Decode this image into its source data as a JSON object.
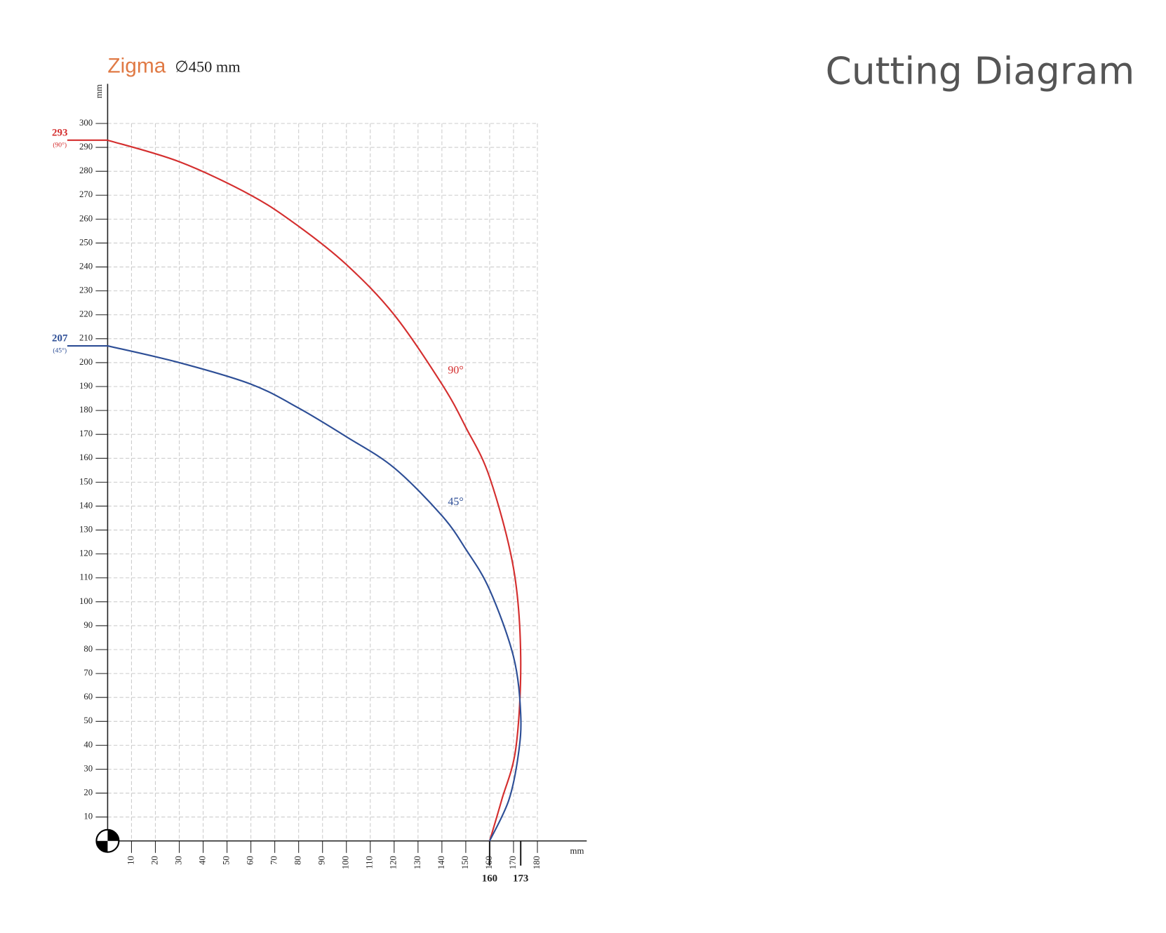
{
  "header": {
    "brand": "Zigma",
    "blade": "∅450 mm",
    "title": "Cutting Diagram"
  },
  "chart_data": {
    "type": "line",
    "x_label": "mm",
    "y_label": "mm",
    "xlim": [
      0,
      180
    ],
    "ylim": [
      0,
      300
    ],
    "xticks": [
      10,
      20,
      30,
      40,
      50,
      60,
      70,
      80,
      90,
      100,
      110,
      120,
      130,
      140,
      150,
      160,
      170,
      180
    ],
    "yticks": [
      10,
      20,
      30,
      40,
      50,
      60,
      70,
      80,
      90,
      100,
      110,
      120,
      130,
      140,
      150,
      160,
      170,
      180,
      190,
      200,
      210,
      220,
      230,
      240,
      250,
      260,
      270,
      280,
      290,
      300
    ],
    "grid": true,
    "series": [
      {
        "name": "90°",
        "color": "#d42e2e",
        "x": [
          0,
          30,
          60,
          80,
          100,
          120,
          140,
          150,
          160,
          170,
          173,
          171,
          165,
          160
        ],
        "values": [
          293,
          284,
          270,
          257,
          241,
          220,
          191,
          173,
          152,
          114,
          77,
          39,
          17,
          0
        ]
      },
      {
        "name": "45°",
        "color": "#2d4e96",
        "x": [
          0,
          30,
          60,
          80,
          100,
          120,
          140,
          150,
          160,
          170,
          173,
          172,
          168,
          160
        ],
        "values": [
          207,
          200,
          191,
          181,
          169,
          156,
          136,
          122,
          105,
          77,
          53,
          36,
          17,
          0
        ]
      }
    ],
    "y_markers": [
      {
        "value": 293,
        "note": "(90°)",
        "color": "#d42e2e"
      },
      {
        "value": 207,
        "note": "(45°)",
        "color": "#2d4e96"
      }
    ],
    "x_markers": [
      {
        "value": 160
      },
      {
        "value": 173
      }
    ]
  }
}
